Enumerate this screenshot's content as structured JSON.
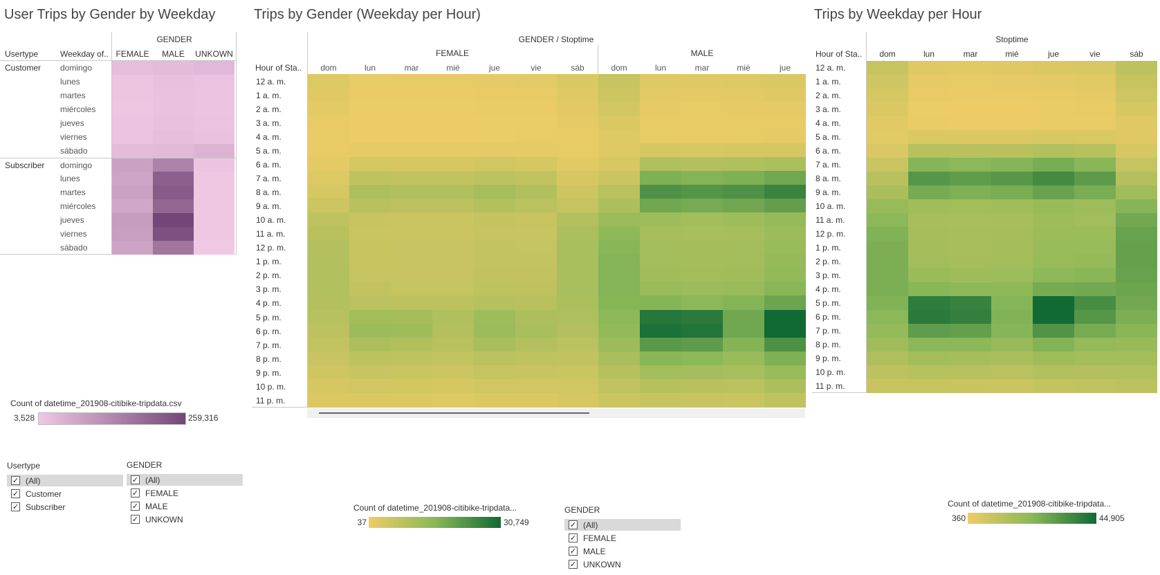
{
  "left": {
    "title": "User Trips by Gender by Weekday",
    "col_header_group": "GENDER",
    "row_header_1": "Usertype",
    "row_header_2": "Weekday of..",
    "genders": [
      "FEMALE",
      "MALE",
      "UNKOWN"
    ],
    "usertypes": [
      "Customer",
      "Subscriber"
    ],
    "weekdays": [
      "domingo",
      "lunes",
      "martes",
      "miércoles",
      "jueves",
      "viernes",
      "sábado"
    ]
  },
  "middle": {
    "title": "Trips by Gender (Weekday per Hour)",
    "col_header": "GENDER / Stoptime",
    "row_header": "Hour of Sta..",
    "gender_groups": [
      "FEMALE",
      "MALE"
    ],
    "female_days": [
      "dom",
      "lun",
      "mar",
      "mié",
      "jue",
      "vie",
      "sáb"
    ],
    "male_days": [
      "dom",
      "lun",
      "mar",
      "mié",
      "jue"
    ]
  },
  "right": {
    "title": "Trips by Weekday per Hour",
    "col_header": "Stoptime",
    "row_header": "Hour of Sta..",
    "days": [
      "dom",
      "lun",
      "mar",
      "mié",
      "jue",
      "vie",
      "sáb"
    ]
  },
  "hours": [
    "12 a. m.",
    "1 a. m.",
    "2 a. m.",
    "3 a. m.",
    "4 a. m.",
    "5 a. m.",
    "6 a. m.",
    "7 a. m.",
    "8 a. m.",
    "9 a. m.",
    "10 a. m.",
    "11 a. m.",
    "12 p. m.",
    "1 p. m.",
    "2 p. m.",
    "3 p. m.",
    "4 p. m.",
    "5 p. m.",
    "6 p. m.",
    "7 p. m.",
    "8 p. m.",
    "9 p. m.",
    "10 p. m.",
    "11 p. m."
  ],
  "legends": {
    "purple": {
      "title": "Count of datetime_201908-citibike-tripdata.csv",
      "min": "3,528",
      "max": "259,316"
    },
    "green_mid": {
      "title": "Count of datetime_201908-citibike-tripdata...",
      "min": "37",
      "max": "30,749"
    },
    "green_right": {
      "title": "Count of datetime_201908-citibike-tripdata...",
      "min": "360",
      "max": "44,905"
    }
  },
  "filters": {
    "usertype": {
      "title": "Usertype",
      "items": [
        "(All)",
        "Customer",
        "Subscriber"
      ]
    },
    "gender_left": {
      "title": "GENDER",
      "items": [
        "(All)",
        "FEMALE",
        "MALE",
        "UNKOWN"
      ]
    },
    "gender_mid": {
      "title": "GENDER",
      "items": [
        "(All)",
        "FEMALE",
        "MALE",
        "UNKOWN"
      ]
    }
  },
  "colors": {
    "purple_low": "#f0c8e4",
    "purple_high": "#744677",
    "green_low": "#eecc66",
    "green_mid": "#8bb858",
    "green_high": "#116a34"
  },
  "chart_data": [
    {
      "type": "heatmap",
      "title": "User Trips by Gender by Weekday",
      "rows_usertype": [
        "Customer",
        "Subscriber"
      ],
      "rows_weekday": [
        "domingo",
        "lunes",
        "martes",
        "miércoles",
        "jueves",
        "viernes",
        "sábado"
      ],
      "columns": [
        "FEMALE",
        "MALE",
        "UNKOWN"
      ],
      "values": [
        [
          14000,
          18000,
          22000
        ],
        [
          6000,
          10000,
          8000
        ],
        [
          5500,
          9500,
          7500
        ],
        [
          5000,
          9000,
          7500
        ],
        [
          6500,
          11000,
          8000
        ],
        [
          7500,
          13000,
          9000
        ],
        [
          17000,
          21000,
          30000
        ],
        [
          60000,
          120000,
          7000
        ],
        [
          55000,
          200000,
          4000
        ],
        [
          60000,
          210000,
          4000
        ],
        [
          50000,
          180000,
          4000
        ],
        [
          70000,
          259316,
          4000
        ],
        [
          65000,
          235000,
          4000
        ],
        [
          55000,
          150000,
          3528
        ]
      ],
      "value_range": [
        3528,
        259316
      ]
    },
    {
      "type": "heatmap",
      "title": "Trips by Gender (Weekday per Hour)",
      "rows": [
        "12 a. m.",
        "1 a. m.",
        "2 a. m.",
        "3 a. m.",
        "4 a. m.",
        "5 a. m.",
        "6 a. m.",
        "7 a. m.",
        "8 a. m.",
        "9 a. m.",
        "10 a. m.",
        "11 a. m.",
        "12 p. m.",
        "1 p. m.",
        "2 p. m.",
        "3 p. m.",
        "4 p. m.",
        "5 p. m.",
        "6 p. m.",
        "7 p. m.",
        "8 p. m.",
        "9 p. m.",
        "10 p. m.",
        "11 p. m."
      ],
      "columns": [
        "FEMALE dom",
        "FEMALE lun",
        "FEMALE mar",
        "FEMALE mié",
        "FEMALE jue",
        "FEMALE vie",
        "FEMALE sáb",
        "MALE dom",
        "MALE lun",
        "MALE mar",
        "MALE mié",
        "MALE jue"
      ],
      "values": [
        [
          1200,
          400,
          350,
          350,
          450,
          600,
          1500,
          3500,
          1200,
          1100,
          1200,
          1500
        ],
        [
          900,
          200,
          180,
          180,
          250,
          350,
          1100,
          3000,
          700,
          600,
          700,
          900
        ],
        [
          600,
          120,
          100,
          100,
          150,
          200,
          800,
          2300,
          450,
          400,
          450,
          550
        ],
        [
          350,
          80,
          70,
          70,
          90,
          120,
          500,
          1500,
          300,
          250,
          300,
          350
        ],
        [
          250,
          100,
          90,
          90,
          110,
          130,
          350,
          1000,
          400,
          350,
          400,
          450
        ],
        [
          300,
          500,
          450,
          450,
          550,
          500,
          400,
          1000,
          1800,
          1700,
          1900,
          2000
        ],
        [
          600,
          2000,
          1900,
          1900,
          2300,
          2000,
          800,
          1700,
          6500,
          6000,
          6500,
          7200
        ],
        [
          1200,
          4500,
          4300,
          4300,
          5000,
          4300,
          1800,
          3200,
          14000,
          13000,
          14000,
          16000
        ],
        [
          2000,
          7000,
          6500,
          6500,
          8000,
          6500,
          2800,
          5200,
          21000,
          20000,
          21000,
          24000
        ],
        [
          3000,
          5500,
          5000,
          5000,
          6200,
          5200,
          3800,
          7200,
          16000,
          15000,
          16000,
          18000
        ],
        [
          4500,
          3500,
          3300,
          3300,
          4000,
          3600,
          6000,
          9500,
          9000,
          8500,
          9000,
          10500
        ],
        [
          5500,
          3300,
          3100,
          3100,
          3700,
          3500,
          7000,
          11500,
          7800,
          7500,
          7800,
          9500
        ],
        [
          6000,
          3600,
          3400,
          3400,
          4000,
          3900,
          7500,
          12500,
          8300,
          8000,
          8300,
          10000
        ],
        [
          6300,
          3600,
          3400,
          3400,
          4000,
          4000,
          7600,
          13000,
          8300,
          8000,
          8300,
          10500
        ],
        [
          6300,
          3800,
          3500,
          3500,
          4200,
          4200,
          7600,
          13000,
          8800,
          8500,
          8800,
          11000
        ],
        [
          6200,
          4200,
          3900,
          3900,
          4700,
          4600,
          7500,
          13000,
          10000,
          9500,
          10000,
          12500
        ],
        [
          6000,
          5200,
          4800,
          4800,
          5800,
          5500,
          7200,
          12700,
          13000,
          12000,
          13000,
          16500
        ],
        [
          5600,
          8500,
          8000,
          6500,
          9000,
          7000,
          6800,
          12000,
          27500,
          26500,
          16000,
          30749
        ],
        [
          5000,
          9500,
          9000,
          6000,
          9500,
          7500,
          6000,
          11000,
          29000,
          28000,
          16000,
          30749
        ],
        [
          4300,
          7000,
          6500,
          5500,
          7500,
          6000,
          5200,
          9500,
          19000,
          18500,
          13000,
          21000
        ],
        [
          3500,
          4800,
          4500,
          4000,
          5200,
          4500,
          4200,
          7500,
          12500,
          12000,
          10000,
          14000
        ],
        [
          2600,
          3400,
          3200,
          3000,
          3700,
          3400,
          3300,
          5800,
          8500,
          8200,
          7500,
          10000
        ],
        [
          1900,
          2300,
          2200,
          2000,
          2500,
          2400,
          2500,
          4300,
          5800,
          5500,
          5200,
          7000
        ],
        [
          1300,
          1400,
          1300,
          1200,
          1500,
          1500,
          1800,
          3200,
          3700,
          3500,
          3300,
          4500
        ]
      ],
      "value_range": [
        37,
        30749
      ]
    },
    {
      "type": "heatmap",
      "title": "Trips by Weekday per Hour",
      "rows": [
        "12 a. m.",
        "1 a. m.",
        "2 a. m.",
        "3 a. m.",
        "4 a. m.",
        "5 a. m.",
        "6 a. m.",
        "7 a. m.",
        "8 a. m.",
        "9 a. m.",
        "10 a. m.",
        "11 a. m.",
        "12 p. m.",
        "1 p. m.",
        "2 p. m.",
        "3 p. m.",
        "4 p. m.",
        "5 p. m.",
        "6 p. m.",
        "7 p. m.",
        "8 p. m.",
        "9 p. m.",
        "10 p. m.",
        "11 p. m."
      ],
      "columns": [
        "dom",
        "lun",
        "mar",
        "mié",
        "jue",
        "vie",
        "sáb"
      ],
      "values": [
        [
          5500,
          1800,
          1600,
          1700,
          2200,
          2700,
          7500
        ],
        [
          4200,
          1100,
          900,
          950,
          1300,
          1600,
          5500
        ],
        [
          3200,
          700,
          600,
          620,
          800,
          1000,
          4200
        ],
        [
          2200,
          450,
          400,
          420,
          500,
          650,
          2900
        ],
        [
          1500,
          500,
          450,
          470,
          550,
          600,
          1900
        ],
        [
          1400,
          2400,
          2200,
          2300,
          2700,
          2400,
          1700
        ],
        [
          2600,
          8500,
          8000,
          8300,
          9500,
          8500,
          3000
        ],
        [
          5000,
          19000,
          18000,
          19000,
          21500,
          18500,
          5800
        ],
        [
          8000,
          29000,
          27000,
          28500,
          33000,
          27500,
          9000
        ],
        [
          11000,
          22000,
          20500,
          21500,
          25000,
          21500,
          13000
        ],
        [
          15000,
          13000,
          12500,
          13000,
          15000,
          13500,
          19000
        ],
        [
          18000,
          11500,
          11000,
          11500,
          13500,
          12800,
          23000
        ],
        [
          20000,
          12000,
          11500,
          12000,
          14000,
          14000,
          25000
        ],
        [
          21000,
          12000,
          11500,
          12000,
          14500,
          14500,
          25500
        ],
        [
          21000,
          12800,
          12000,
          12500,
          15000,
          16000,
          25500
        ],
        [
          21000,
          14500,
          13500,
          13800,
          17000,
          18500,
          25000
        ],
        [
          21000,
          18500,
          17500,
          17000,
          22000,
          23000,
          24000
        ],
        [
          20000,
          38000,
          36000,
          19000,
          44905,
          32000,
          23000
        ],
        [
          18000,
          39000,
          37000,
          20000,
          44905,
          29000,
          21000
        ],
        [
          16000,
          27000,
          26000,
          19000,
          30000,
          22000,
          18500
        ],
        [
          13000,
          18000,
          17500,
          15000,
          19500,
          16000,
          15000
        ],
        [
          10000,
          12500,
          12000,
          11000,
          13500,
          12000,
          12000
        ],
        [
          7500,
          8500,
          8200,
          7800,
          9500,
          9000,
          9500
        ],
        [
          5500,
          5500,
          5200,
          5000,
          6200,
          6500,
          7500
        ]
      ],
      "value_range": [
        360,
        44905
      ]
    }
  ]
}
